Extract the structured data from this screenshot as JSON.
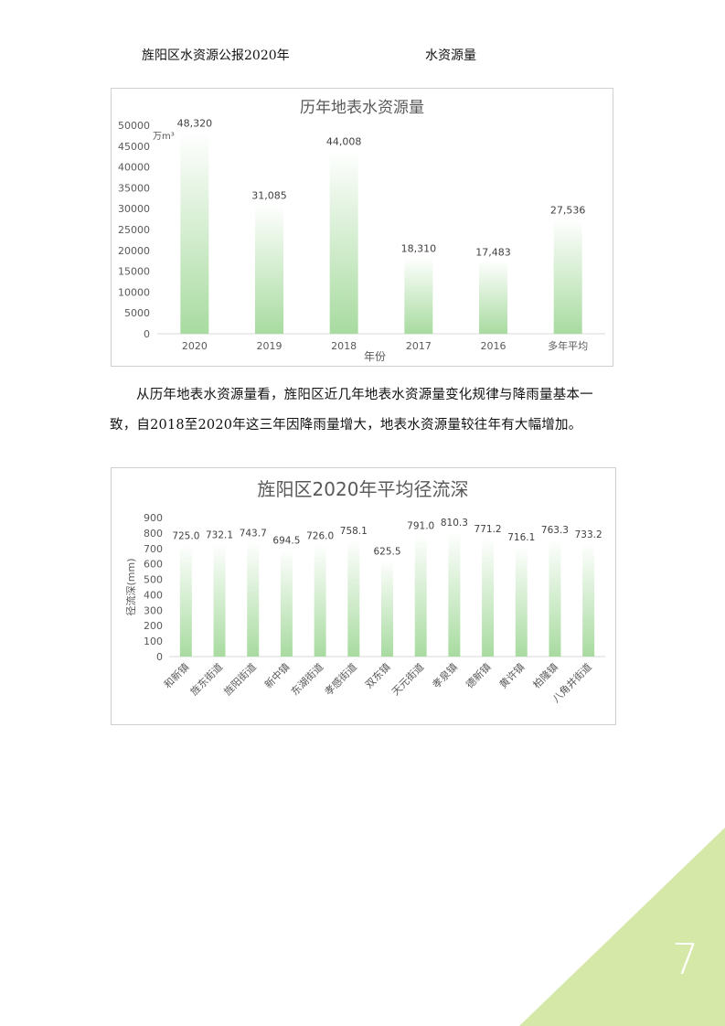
{
  "header": {
    "left": "旌阳区水资源公报2020年",
    "right": "水资源量"
  },
  "chart_data": [
    {
      "type": "bar",
      "title": "历年地表水资源量",
      "unit_label": "万m³",
      "xlabel": "年份",
      "ylabel": "",
      "categories": [
        "2020",
        "2019",
        "2018",
        "2017",
        "2016",
        "多年平均"
      ],
      "values": [
        48320,
        31085,
        44008,
        18310,
        17483,
        27536
      ],
      "value_labels": [
        "48,320",
        "31,085",
        "44,008",
        "18,310",
        "17,483",
        "27,536"
      ],
      "ylim": [
        0,
        50000
      ],
      "yticks": [
        0,
        5000,
        10000,
        15000,
        20000,
        25000,
        30000,
        35000,
        40000,
        45000,
        50000
      ],
      "bar_color": "#a8dba0",
      "grid": false
    },
    {
      "type": "bar",
      "title": "旌阳区2020年平均径流深",
      "xlabel": "",
      "ylabel": "径流深(mm)",
      "categories": [
        "和新镇",
        "旌东街道",
        "旌阳街道",
        "新中镇",
        "东湖街道",
        "孝感街道",
        "双东镇",
        "天元街道",
        "孝泉镇",
        "德新镇",
        "黄许镇",
        "柏隆镇",
        "八角井街道"
      ],
      "values": [
        725.0,
        732.1,
        743.7,
        694.5,
        726.0,
        758.1,
        625.5,
        791.0,
        810.3,
        771.2,
        716.1,
        763.3,
        733.2
      ],
      "value_labels": [
        "725.0",
        "732.1",
        "743.7",
        "694.5",
        "726.0",
        "758.1",
        "625.5",
        "791.0",
        "810.3",
        "771.2",
        "716.1",
        "763.3",
        "733.2"
      ],
      "ylim": [
        0,
        900
      ],
      "yticks": [
        0,
        100,
        200,
        300,
        400,
        500,
        600,
        700,
        800,
        900
      ],
      "bar_color": "#a8dba0",
      "grid": false
    }
  ],
  "body": {
    "paragraph1": "从历年地表水资源量看，旌阳区近几年地表水资源量变化规律与降雨量基本一致，自2018至2020年这三年因降雨量增大，地表水资源量较往年有大幅增加。"
  },
  "footer": {
    "page_number": "7",
    "corner_color": "#d6e8a8"
  }
}
